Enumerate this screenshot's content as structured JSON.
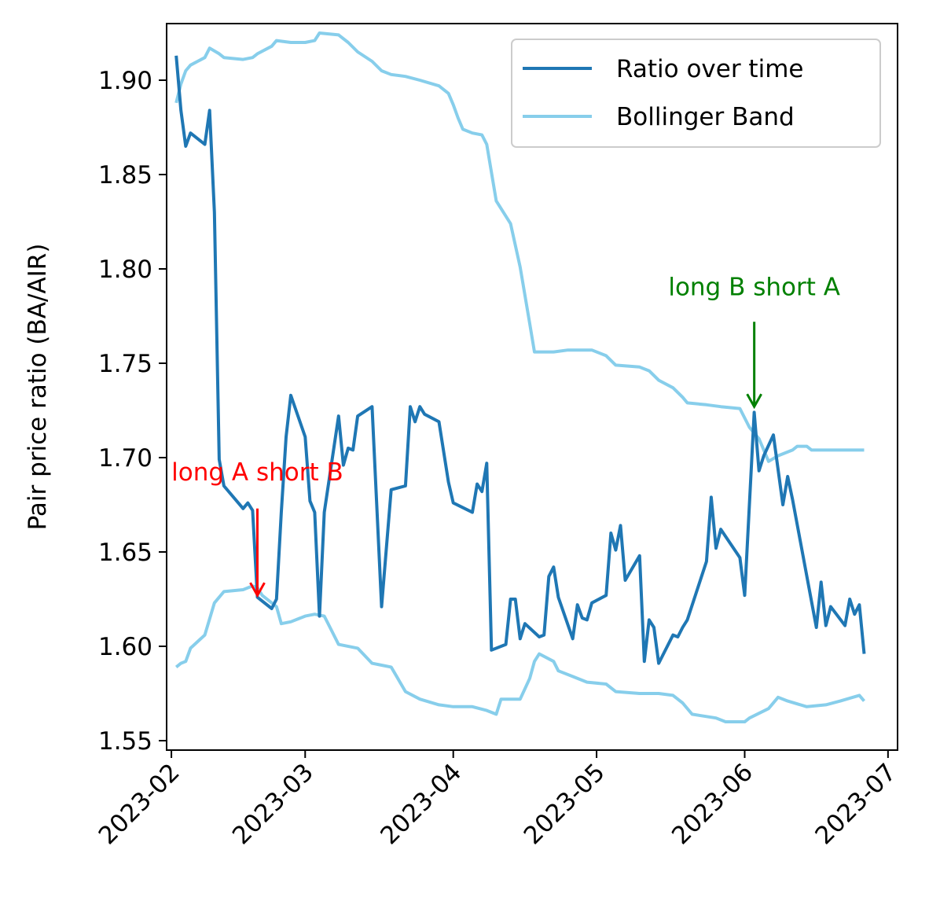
{
  "chart_data": {
    "type": "line",
    "title": "",
    "xlabel": "",
    "ylabel": "Pair price ratio (BA/AIR)",
    "xlim": [
      "2023-01-31",
      "2023-07-03"
    ],
    "ylim": [
      1.545,
      1.93
    ],
    "x_ticks": [
      "2023-02",
      "2023-03",
      "2023-04",
      "2023-05",
      "2023-06",
      "2023-07"
    ],
    "y_ticks": [
      "1.55",
      "1.60",
      "1.65",
      "1.70",
      "1.75",
      "1.80",
      "1.85",
      "1.90"
    ],
    "grid": false,
    "legend_position": "top-right",
    "series": [
      {
        "name": "Ratio over time",
        "color": "#1f77b4",
        "points": [
          [
            "2023-02-02",
            1.913
          ],
          [
            "2023-02-03",
            1.884
          ],
          [
            "2023-02-04",
            1.865
          ],
          [
            "2023-02-05",
            1.872
          ],
          [
            "2023-02-08",
            1.866
          ],
          [
            "2023-02-09",
            1.884
          ],
          [
            "2023-02-10",
            1.83
          ],
          [
            "2023-02-11",
            1.699
          ],
          [
            "2023-02-12",
            1.685
          ],
          [
            "2023-02-16",
            1.673
          ],
          [
            "2023-02-17",
            1.676
          ],
          [
            "2023-02-18",
            1.672
          ],
          [
            "2023-02-19",
            1.626
          ],
          [
            "2023-02-22",
            1.62
          ],
          [
            "2023-02-23",
            1.625
          ],
          [
            "2023-02-24",
            1.671
          ],
          [
            "2023-02-25",
            1.711
          ],
          [
            "2023-02-26",
            1.733
          ],
          [
            "2023-03-01",
            1.711
          ],
          [
            "2023-03-02",
            1.677
          ],
          [
            "2023-03-03",
            1.671
          ],
          [
            "2023-03-04",
            1.616
          ],
          [
            "2023-03-05",
            1.671
          ],
          [
            "2023-03-08",
            1.722
          ],
          [
            "2023-03-09",
            1.696
          ],
          [
            "2023-03-10",
            1.705
          ],
          [
            "2023-03-11",
            1.704
          ],
          [
            "2023-03-12",
            1.722
          ],
          [
            "2023-03-15",
            1.727
          ],
          [
            "2023-03-17",
            1.621
          ],
          [
            "2023-03-19",
            1.683
          ],
          [
            "2023-03-22",
            1.685
          ],
          [
            "2023-03-23",
            1.727
          ],
          [
            "2023-03-24",
            1.719
          ],
          [
            "2023-03-25",
            1.727
          ],
          [
            "2023-03-26",
            1.723
          ],
          [
            "2023-03-29",
            1.719
          ],
          [
            "2023-03-31",
            1.687
          ],
          [
            "2023-04-01",
            1.676
          ],
          [
            "2023-04-05",
            1.671
          ],
          [
            "2023-04-06",
            1.686
          ],
          [
            "2023-04-07",
            1.682
          ],
          [
            "2023-04-08",
            1.697
          ],
          [
            "2023-04-09",
            1.598
          ],
          [
            "2023-04-12",
            1.601
          ],
          [
            "2023-04-13",
            1.625
          ],
          [
            "2023-04-14",
            1.625
          ],
          [
            "2023-04-15",
            1.604
          ],
          [
            "2023-04-16",
            1.612
          ],
          [
            "2023-04-19",
            1.605
          ],
          [
            "2023-04-20",
            1.606
          ],
          [
            "2023-04-21",
            1.637
          ],
          [
            "2023-04-22",
            1.642
          ],
          [
            "2023-04-23",
            1.626
          ],
          [
            "2023-04-26",
            1.604
          ],
          [
            "2023-04-27",
            1.622
          ],
          [
            "2023-04-28",
            1.615
          ],
          [
            "2023-04-29",
            1.614
          ],
          [
            "2023-04-30",
            1.623
          ],
          [
            "2023-05-03",
            1.627
          ],
          [
            "2023-05-04",
            1.66
          ],
          [
            "2023-05-05",
            1.651
          ],
          [
            "2023-05-06",
            1.664
          ],
          [
            "2023-05-07",
            1.635
          ],
          [
            "2023-05-10",
            1.648
          ],
          [
            "2023-05-11",
            1.592
          ],
          [
            "2023-05-12",
            1.614
          ],
          [
            "2023-05-13",
            1.61
          ],
          [
            "2023-05-14",
            1.591
          ],
          [
            "2023-05-17",
            1.606
          ],
          [
            "2023-05-18",
            1.605
          ],
          [
            "2023-05-19",
            1.61
          ],
          [
            "2023-05-20",
            1.614
          ],
          [
            "2023-05-24",
            1.645
          ],
          [
            "2023-05-25",
            1.679
          ],
          [
            "2023-05-26",
            1.652
          ],
          [
            "2023-05-27",
            1.662
          ],
          [
            "2023-05-31",
            1.647
          ],
          [
            "2023-06-01",
            1.627
          ],
          [
            "2023-06-03",
            1.724
          ],
          [
            "2023-06-04",
            1.693
          ],
          [
            "2023-06-05",
            1.701
          ],
          [
            "2023-06-07",
            1.712
          ],
          [
            "2023-06-09",
            1.675
          ],
          [
            "2023-06-10",
            1.69
          ],
          [
            "2023-06-11",
            1.678
          ],
          [
            "2023-06-16",
            1.61
          ],
          [
            "2023-06-17",
            1.634
          ],
          [
            "2023-06-18",
            1.611
          ],
          [
            "2023-06-19",
            1.621
          ],
          [
            "2023-06-22",
            1.611
          ],
          [
            "2023-06-23",
            1.625
          ],
          [
            "2023-06-24",
            1.617
          ],
          [
            "2023-06-25",
            1.622
          ],
          [
            "2023-06-26",
            1.596
          ]
        ]
      },
      {
        "name": "Bollinger Band",
        "color": "#87ceeb",
        "points": [
          [
            "2023-02-02",
            1.888
          ],
          [
            "2023-02-03",
            1.898
          ],
          [
            "2023-02-04",
            1.905
          ],
          [
            "2023-02-05",
            1.908
          ],
          [
            "2023-02-08",
            1.912
          ],
          [
            "2023-02-09",
            1.917
          ],
          [
            "2023-02-11",
            1.914
          ],
          [
            "2023-02-12",
            1.912
          ],
          [
            "2023-02-16",
            1.911
          ],
          [
            "2023-02-18",
            1.912
          ],
          [
            "2023-02-19",
            1.914
          ],
          [
            "2023-02-22",
            1.918
          ],
          [
            "2023-02-23",
            1.921
          ],
          [
            "2023-02-26",
            1.92
          ],
          [
            "2023-03-01",
            1.92
          ],
          [
            "2023-03-03",
            1.921
          ],
          [
            "2023-03-04",
            1.925
          ],
          [
            "2023-03-08",
            1.924
          ],
          [
            "2023-03-10",
            1.92
          ],
          [
            "2023-03-12",
            1.915
          ],
          [
            "2023-03-15",
            1.91
          ],
          [
            "2023-03-17",
            1.905
          ],
          [
            "2023-03-19",
            1.903
          ],
          [
            "2023-03-22",
            1.902
          ],
          [
            "2023-03-25",
            1.9
          ],
          [
            "2023-03-29",
            1.897
          ],
          [
            "2023-03-31",
            1.893
          ],
          [
            "2023-04-01",
            1.887
          ],
          [
            "2023-04-02",
            1.88
          ],
          [
            "2023-04-03",
            1.874
          ],
          [
            "2023-04-05",
            1.872
          ],
          [
            "2023-04-07",
            1.871
          ],
          [
            "2023-04-08",
            1.866
          ],
          [
            "2023-04-10",
            1.836
          ],
          [
            "2023-04-13",
            1.824
          ],
          [
            "2023-04-15",
            1.801
          ],
          [
            "2023-04-17",
            1.771
          ],
          [
            "2023-04-18",
            1.756
          ],
          [
            "2023-04-22",
            1.756
          ],
          [
            "2023-04-25",
            1.757
          ],
          [
            "2023-04-30",
            1.757
          ],
          [
            "2023-05-03",
            1.754
          ],
          [
            "2023-05-05",
            1.749
          ],
          [
            "2023-05-10",
            1.748
          ],
          [
            "2023-05-12",
            1.746
          ],
          [
            "2023-05-14",
            1.741
          ],
          [
            "2023-05-17",
            1.737
          ],
          [
            "2023-05-19",
            1.732
          ],
          [
            "2023-05-20",
            1.729
          ],
          [
            "2023-05-24",
            1.728
          ],
          [
            "2023-05-27",
            1.727
          ],
          [
            "2023-05-31",
            1.726
          ],
          [
            "2023-06-02",
            1.716
          ],
          [
            "2023-06-04",
            1.71
          ],
          [
            "2023-06-06",
            1.698
          ],
          [
            "2023-06-08",
            1.701
          ],
          [
            "2023-06-11",
            1.704
          ],
          [
            "2023-06-12",
            1.706
          ],
          [
            "2023-06-14",
            1.706
          ],
          [
            "2023-06-15",
            1.704
          ],
          [
            "2023-06-20",
            1.704
          ],
          [
            "2023-06-25",
            1.704
          ],
          [
            "2023-06-26",
            1.704
          ]
        ]
      },
      {
        "name": "Bollinger Band",
        "color": "#87ceeb",
        "points": [
          [
            "2023-02-02",
            1.589
          ],
          [
            "2023-02-03",
            1.591
          ],
          [
            "2023-02-04",
            1.592
          ],
          [
            "2023-02-05",
            1.599
          ],
          [
            "2023-02-08",
            1.606
          ],
          [
            "2023-02-10",
            1.623
          ],
          [
            "2023-02-12",
            1.629
          ],
          [
            "2023-02-16",
            1.63
          ],
          [
            "2023-02-18",
            1.632
          ],
          [
            "2023-02-19",
            1.631
          ],
          [
            "2023-02-20",
            1.627
          ],
          [
            "2023-02-23",
            1.621
          ],
          [
            "2023-02-24",
            1.612
          ],
          [
            "2023-02-26",
            1.613
          ],
          [
            "2023-03-01",
            1.616
          ],
          [
            "2023-03-03",
            1.617
          ],
          [
            "2023-03-05",
            1.616
          ],
          [
            "2023-03-06",
            1.611
          ],
          [
            "2023-03-08",
            1.601
          ],
          [
            "2023-03-12",
            1.599
          ],
          [
            "2023-03-15",
            1.591
          ],
          [
            "2023-03-17",
            1.59
          ],
          [
            "2023-03-19",
            1.589
          ],
          [
            "2023-03-22",
            1.576
          ],
          [
            "2023-03-25",
            1.572
          ],
          [
            "2023-03-29",
            1.569
          ],
          [
            "2023-04-01",
            1.568
          ],
          [
            "2023-04-05",
            1.568
          ],
          [
            "2023-04-08",
            1.566
          ],
          [
            "2023-04-10",
            1.564
          ],
          [
            "2023-04-11",
            1.572
          ],
          [
            "2023-04-15",
            1.572
          ],
          [
            "2023-04-17",
            1.583
          ],
          [
            "2023-04-18",
            1.592
          ],
          [
            "2023-04-19",
            1.596
          ],
          [
            "2023-04-22",
            1.592
          ],
          [
            "2023-04-23",
            1.587
          ],
          [
            "2023-04-26",
            1.584
          ],
          [
            "2023-04-29",
            1.581
          ],
          [
            "2023-05-03",
            1.58
          ],
          [
            "2023-05-05",
            1.576
          ],
          [
            "2023-05-10",
            1.575
          ],
          [
            "2023-05-14",
            1.575
          ],
          [
            "2023-05-17",
            1.574
          ],
          [
            "2023-05-19",
            1.57
          ],
          [
            "2023-05-21",
            1.564
          ],
          [
            "2023-05-26",
            1.562
          ],
          [
            "2023-05-28",
            1.56
          ],
          [
            "2023-06-01",
            1.56
          ],
          [
            "2023-06-02",
            1.562
          ],
          [
            "2023-06-06",
            1.567
          ],
          [
            "2023-06-08",
            1.573
          ],
          [
            "2023-06-10",
            1.571
          ],
          [
            "2023-06-14",
            1.568
          ],
          [
            "2023-06-18",
            1.569
          ],
          [
            "2023-06-21",
            1.571
          ],
          [
            "2023-06-25",
            1.574
          ],
          [
            "2023-06-26",
            1.571
          ]
        ]
      }
    ],
    "annotations": [
      {
        "text": "long A short B",
        "color": "#ff0000",
        "text_at": [
          "2023-02-19",
          1.688
        ],
        "arrow_from": [
          "2023-02-19",
          1.673
        ],
        "arrow_to": [
          "2023-02-19",
          1.627
        ]
      },
      {
        "text": "long B short A",
        "color": "#008000",
        "text_at": [
          "2023-06-03",
          1.786
        ],
        "arrow_from": [
          "2023-06-03",
          1.772
        ],
        "arrow_to": [
          "2023-06-03",
          1.727
        ]
      }
    ]
  }
}
